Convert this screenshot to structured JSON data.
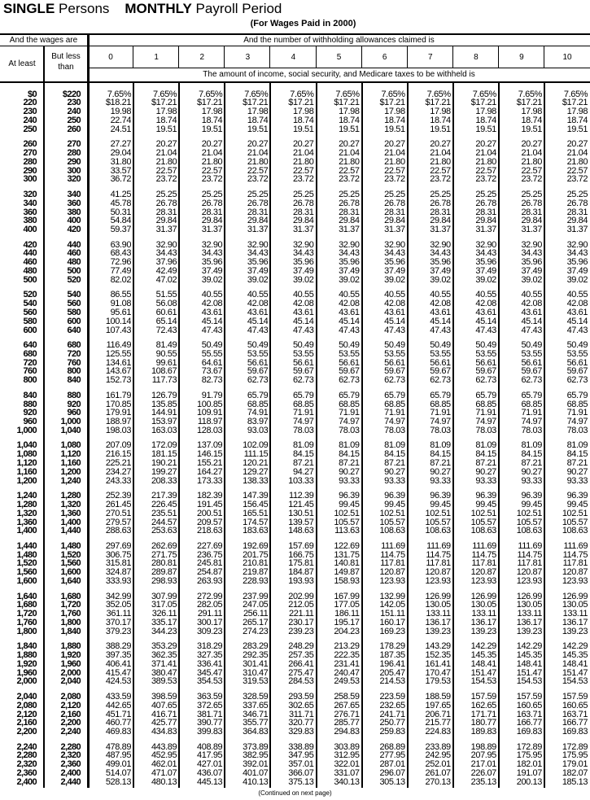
{
  "title": {
    "bold1": "SINGLE",
    "text1": "Persons",
    "bold2": "MONTHLY",
    "text2": "Payroll Period"
  },
  "subtitle": "(For Wages Paid in 2000)",
  "header": {
    "wages_label": "And the wages are",
    "allowances_label": "And the number of withholding allowances claimed is",
    "at_least": "At least",
    "but_less_than": "But less than",
    "allowance_columns": [
      "0",
      "1",
      "2",
      "3",
      "4",
      "5",
      "6",
      "7",
      "8",
      "9",
      "10"
    ],
    "amount_label": "The amount of income, social security, and Medicare taxes to be withheld is"
  },
  "groups": [
    [
      [
        "$0",
        "$220",
        "7.65%",
        "7.65%",
        "7.65%",
        "7.65%",
        "7.65%",
        "7.65%",
        "7.65%",
        "7.65%",
        "7.65%",
        "7.65%",
        "7.65%"
      ],
      [
        "220",
        "230",
        "$18.21",
        "$17.21",
        "$17.21",
        "$17.21",
        "$17.21",
        "$17.21",
        "$17.21",
        "$17.21",
        "$17.21",
        "$17.21",
        "$17.21"
      ],
      [
        "230",
        "240",
        "19.98",
        "17.98",
        "17.98",
        "17.98",
        "17.98",
        "17.98",
        "17.98",
        "17.98",
        "17.98",
        "17.98",
        "17.98"
      ],
      [
        "240",
        "250",
        "22.74",
        "18.74",
        "18.74",
        "18.74",
        "18.74",
        "18.74",
        "18.74",
        "18.74",
        "18.74",
        "18.74",
        "18.74"
      ],
      [
        "250",
        "260",
        "24.51",
        "19.51",
        "19.51",
        "19.51",
        "19.51",
        "19.51",
        "19.51",
        "19.51",
        "19.51",
        "19.51",
        "19.51"
      ]
    ],
    [
      [
        "260",
        "270",
        "27.27",
        "20.27",
        "20.27",
        "20.27",
        "20.27",
        "20.27",
        "20.27",
        "20.27",
        "20.27",
        "20.27",
        "20.27"
      ],
      [
        "270",
        "280",
        "29.04",
        "21.04",
        "21.04",
        "21.04",
        "21.04",
        "21.04",
        "21.04",
        "21.04",
        "21.04",
        "21.04",
        "21.04"
      ],
      [
        "280",
        "290",
        "31.80",
        "21.80",
        "21.80",
        "21.80",
        "21.80",
        "21.80",
        "21.80",
        "21.80",
        "21.80",
        "21.80",
        "21.80"
      ],
      [
        "290",
        "300",
        "33.57",
        "22.57",
        "22.57",
        "22.57",
        "22.57",
        "22.57",
        "22.57",
        "22.57",
        "22.57",
        "22.57",
        "22.57"
      ],
      [
        "300",
        "320",
        "36.72",
        "23.72",
        "23.72",
        "23.72",
        "23.72",
        "23.72",
        "23.72",
        "23.72",
        "23.72",
        "23.72",
        "23.72"
      ]
    ],
    [
      [
        "320",
        "340",
        "41.25",
        "25.25",
        "25.25",
        "25.25",
        "25.25",
        "25.25",
        "25.25",
        "25.25",
        "25.25",
        "25.25",
        "25.25"
      ],
      [
        "340",
        "360",
        "45.78",
        "26.78",
        "26.78",
        "26.78",
        "26.78",
        "26.78",
        "26.78",
        "26.78",
        "26.78",
        "26.78",
        "26.78"
      ],
      [
        "360",
        "380",
        "50.31",
        "28.31",
        "28.31",
        "28.31",
        "28.31",
        "28.31",
        "28.31",
        "28.31",
        "28.31",
        "28.31",
        "28.31"
      ],
      [
        "380",
        "400",
        "54.84",
        "29.84",
        "29.84",
        "29.84",
        "29.84",
        "29.84",
        "29.84",
        "29.84",
        "29.84",
        "29.84",
        "29.84"
      ],
      [
        "400",
        "420",
        "59.37",
        "31.37",
        "31.37",
        "31.37",
        "31.37",
        "31.37",
        "31.37",
        "31.37",
        "31.37",
        "31.37",
        "31.37"
      ]
    ],
    [
      [
        "420",
        "440",
        "63.90",
        "32.90",
        "32.90",
        "32.90",
        "32.90",
        "32.90",
        "32.90",
        "32.90",
        "32.90",
        "32.90",
        "32.90"
      ],
      [
        "440",
        "460",
        "68.43",
        "34.43",
        "34.43",
        "34.43",
        "34.43",
        "34.43",
        "34.43",
        "34.43",
        "34.43",
        "34.43",
        "34.43"
      ],
      [
        "460",
        "480",
        "72.96",
        "37.96",
        "35.96",
        "35.96",
        "35.96",
        "35.96",
        "35.96",
        "35.96",
        "35.96",
        "35.96",
        "35.96"
      ],
      [
        "480",
        "500",
        "77.49",
        "42.49",
        "37.49",
        "37.49",
        "37.49",
        "37.49",
        "37.49",
        "37.49",
        "37.49",
        "37.49",
        "37.49"
      ],
      [
        "500",
        "520",
        "82.02",
        "47.02",
        "39.02",
        "39.02",
        "39.02",
        "39.02",
        "39.02",
        "39.02",
        "39.02",
        "39.02",
        "39.02"
      ]
    ],
    [
      [
        "520",
        "540",
        "86.55",
        "51.55",
        "40.55",
        "40.55",
        "40.55",
        "40.55",
        "40.55",
        "40.55",
        "40.55",
        "40.55",
        "40.55"
      ],
      [
        "540",
        "560",
        "91.08",
        "56.08",
        "42.08",
        "42.08",
        "42.08",
        "42.08",
        "42.08",
        "42.08",
        "42.08",
        "42.08",
        "42.08"
      ],
      [
        "560",
        "580",
        "95.61",
        "60.61",
        "43.61",
        "43.61",
        "43.61",
        "43.61",
        "43.61",
        "43.61",
        "43.61",
        "43.61",
        "43.61"
      ],
      [
        "580",
        "600",
        "100.14",
        "65.14",
        "45.14",
        "45.14",
        "45.14",
        "45.14",
        "45.14",
        "45.14",
        "45.14",
        "45.14",
        "45.14"
      ],
      [
        "600",
        "640",
        "107.43",
        "72.43",
        "47.43",
        "47.43",
        "47.43",
        "47.43",
        "47.43",
        "47.43",
        "47.43",
        "47.43",
        "47.43"
      ]
    ],
    [
      [
        "640",
        "680",
        "116.49",
        "81.49",
        "50.49",
        "50.49",
        "50.49",
        "50.49",
        "50.49",
        "50.49",
        "50.49",
        "50.49",
        "50.49"
      ],
      [
        "680",
        "720",
        "125.55",
        "90.55",
        "55.55",
        "53.55",
        "53.55",
        "53.55",
        "53.55",
        "53.55",
        "53.55",
        "53.55",
        "53.55"
      ],
      [
        "720",
        "760",
        "134.61",
        "99.61",
        "64.61",
        "56.61",
        "56.61",
        "56.61",
        "56.61",
        "56.61",
        "56.61",
        "56.61",
        "56.61"
      ],
      [
        "760",
        "800",
        "143.67",
        "108.67",
        "73.67",
        "59.67",
        "59.67",
        "59.67",
        "59.67",
        "59.67",
        "59.67",
        "59.67",
        "59.67"
      ],
      [
        "800",
        "840",
        "152.73",
        "117.73",
        "82.73",
        "62.73",
        "62.73",
        "62.73",
        "62.73",
        "62.73",
        "62.73",
        "62.73",
        "62.73"
      ]
    ],
    [
      [
        "840",
        "880",
        "161.79",
        "126.79",
        "91.79",
        "65.79",
        "65.79",
        "65.79",
        "65.79",
        "65.79",
        "65.79",
        "65.79",
        "65.79"
      ],
      [
        "880",
        "920",
        "170.85",
        "135.85",
        "100.85",
        "68.85",
        "68.85",
        "68.85",
        "68.85",
        "68.85",
        "68.85",
        "68.85",
        "68.85"
      ],
      [
        "920",
        "960",
        "179.91",
        "144.91",
        "109.91",
        "74.91",
        "71.91",
        "71.91",
        "71.91",
        "71.91",
        "71.91",
        "71.91",
        "71.91"
      ],
      [
        "960",
        "1,000",
        "188.97",
        "153.97",
        "118.97",
        "83.97",
        "74.97",
        "74.97",
        "74.97",
        "74.97",
        "74.97",
        "74.97",
        "74.97"
      ],
      [
        "1,000",
        "1,040",
        "198.03",
        "163.03",
        "128.03",
        "93.03",
        "78.03",
        "78.03",
        "78.03",
        "78.03",
        "78.03",
        "78.03",
        "78.03"
      ]
    ],
    [
      [
        "1,040",
        "1,080",
        "207.09",
        "172.09",
        "137.09",
        "102.09",
        "81.09",
        "81.09",
        "81.09",
        "81.09",
        "81.09",
        "81.09",
        "81.09"
      ],
      [
        "1,080",
        "1,120",
        "216.15",
        "181.15",
        "146.15",
        "111.15",
        "84.15",
        "84.15",
        "84.15",
        "84.15",
        "84.15",
        "84.15",
        "84.15"
      ],
      [
        "1,120",
        "1,160",
        "225.21",
        "190.21",
        "155.21",
        "120.21",
        "87.21",
        "87.21",
        "87.21",
        "87.21",
        "87.21",
        "87.21",
        "87.21"
      ],
      [
        "1,160",
        "1,200",
        "234.27",
        "199.27",
        "164.27",
        "129.27",
        "94.27",
        "90.27",
        "90.27",
        "90.27",
        "90.27",
        "90.27",
        "90.27"
      ],
      [
        "1,200",
        "1,240",
        "243.33",
        "208.33",
        "173.33",
        "138.33",
        "103.33",
        "93.33",
        "93.33",
        "93.33",
        "93.33",
        "93.33",
        "93.33"
      ]
    ],
    [
      [
        "1,240",
        "1,280",
        "252.39",
        "217.39",
        "182.39",
        "147.39",
        "112.39",
        "96.39",
        "96.39",
        "96.39",
        "96.39",
        "96.39",
        "96.39"
      ],
      [
        "1,280",
        "1,320",
        "261.45",
        "226.45",
        "191.45",
        "156.45",
        "121.45",
        "99.45",
        "99.45",
        "99.45",
        "99.45",
        "99.45",
        "99.45"
      ],
      [
        "1,320",
        "1,360",
        "270.51",
        "235.51",
        "200.51",
        "165.51",
        "130.51",
        "102.51",
        "102.51",
        "102.51",
        "102.51",
        "102.51",
        "102.51"
      ],
      [
        "1,360",
        "1,400",
        "279.57",
        "244.57",
        "209.57",
        "174.57",
        "139.57",
        "105.57",
        "105.57",
        "105.57",
        "105.57",
        "105.57",
        "105.57"
      ],
      [
        "1,400",
        "1,440",
        "288.63",
        "253.63",
        "218.63",
        "183.63",
        "148.63",
        "113.63",
        "108.63",
        "108.63",
        "108.63",
        "108.63",
        "108.63"
      ]
    ],
    [
      [
        "1,440",
        "1,480",
        "297.69",
        "262.69",
        "227.69",
        "192.69",
        "157.69",
        "122.69",
        "111.69",
        "111.69",
        "111.69",
        "111.69",
        "111.69"
      ],
      [
        "1,480",
        "1,520",
        "306.75",
        "271.75",
        "236.75",
        "201.75",
        "166.75",
        "131.75",
        "114.75",
        "114.75",
        "114.75",
        "114.75",
        "114.75"
      ],
      [
        "1,520",
        "1,560",
        "315.81",
        "280.81",
        "245.81",
        "210.81",
        "175.81",
        "140.81",
        "117.81",
        "117.81",
        "117.81",
        "117.81",
        "117.81"
      ],
      [
        "1,560",
        "1,600",
        "324.87",
        "289.87",
        "254.87",
        "219.87",
        "184.87",
        "149.87",
        "120.87",
        "120.87",
        "120.87",
        "120.87",
        "120.87"
      ],
      [
        "1,600",
        "1,640",
        "333.93",
        "298.93",
        "263.93",
        "228.93",
        "193.93",
        "158.93",
        "123.93",
        "123.93",
        "123.93",
        "123.93",
        "123.93"
      ]
    ],
    [
      [
        "1,640",
        "1,680",
        "342.99",
        "307.99",
        "272.99",
        "237.99",
        "202.99",
        "167.99",
        "132.99",
        "126.99",
        "126.99",
        "126.99",
        "126.99"
      ],
      [
        "1,680",
        "1,720",
        "352.05",
        "317.05",
        "282.05",
        "247.05",
        "212.05",
        "177.05",
        "142.05",
        "130.05",
        "130.05",
        "130.05",
        "130.05"
      ],
      [
        "1,720",
        "1,760",
        "361.11",
        "326.11",
        "291.11",
        "256.11",
        "221.11",
        "186.11",
        "151.11",
        "133.11",
        "133.11",
        "133.11",
        "133.11"
      ],
      [
        "1,760",
        "1,800",
        "370.17",
        "335.17",
        "300.17",
        "265.17",
        "230.17",
        "195.17",
        "160.17",
        "136.17",
        "136.17",
        "136.17",
        "136.17"
      ],
      [
        "1,800",
        "1,840",
        "379.23",
        "344.23",
        "309.23",
        "274.23",
        "239.23",
        "204.23",
        "169.23",
        "139.23",
        "139.23",
        "139.23",
        "139.23"
      ]
    ],
    [
      [
        "1,840",
        "1,880",
        "388.29",
        "353.29",
        "318.29",
        "283.29",
        "248.29",
        "213.29",
        "178.29",
        "143.29",
        "142.29",
        "142.29",
        "142.29"
      ],
      [
        "1,880",
        "1,920",
        "397.35",
        "362.35",
        "327.35",
        "292.35",
        "257.35",
        "222.35",
        "187.35",
        "152.35",
        "145.35",
        "145.35",
        "145.35"
      ],
      [
        "1,920",
        "1,960",
        "406.41",
        "371.41",
        "336.41",
        "301.41",
        "266.41",
        "231.41",
        "196.41",
        "161.41",
        "148.41",
        "148.41",
        "148.41"
      ],
      [
        "1,960",
        "2,000",
        "415.47",
        "380.47",
        "345.47",
        "310.47",
        "275.47",
        "240.47",
        "205.47",
        "170.47",
        "151.47",
        "151.47",
        "151.47"
      ],
      [
        "2,000",
        "2,040",
        "424.53",
        "389.53",
        "354.53",
        "319.53",
        "284.53",
        "249.53",
        "214.53",
        "179.53",
        "154.53",
        "154.53",
        "154.53"
      ]
    ],
    [
      [
        "2,040",
        "2,080",
        "433.59",
        "398.59",
        "363.59",
        "328.59",
        "293.59",
        "258.59",
        "223.59",
        "188.59",
        "157.59",
        "157.59",
        "157.59"
      ],
      [
        "2,080",
        "2,120",
        "442.65",
        "407.65",
        "372.65",
        "337.65",
        "302.65",
        "267.65",
        "232.65",
        "197.65",
        "162.65",
        "160.65",
        "160.65"
      ],
      [
        "2,120",
        "2,160",
        "451.71",
        "416.71",
        "381.71",
        "346.71",
        "311.71",
        "276.71",
        "241.71",
        "206.71",
        "171.71",
        "163.71",
        "163.71"
      ],
      [
        "2,160",
        "2,200",
        "460.77",
        "425.77",
        "390.77",
        "355.77",
        "320.77",
        "285.77",
        "250.77",
        "215.77",
        "180.77",
        "166.77",
        "166.77"
      ],
      [
        "2,200",
        "2,240",
        "469.83",
        "434.83",
        "399.83",
        "364.83",
        "329.83",
        "294.83",
        "259.83",
        "224.83",
        "189.83",
        "169.83",
        "169.83"
      ]
    ],
    [
      [
        "2,240",
        "2,280",
        "478.89",
        "443.89",
        "408.89",
        "373.89",
        "338.89",
        "303.89",
        "268.89",
        "233.89",
        "198.89",
        "172.89",
        "172.89"
      ],
      [
        "2,280",
        "2,320",
        "487.95",
        "452.95",
        "417.95",
        "382.95",
        "347.95",
        "312.95",
        "277.95",
        "242.95",
        "207.95",
        "175.95",
        "175.95"
      ],
      [
        "2,320",
        "2,360",
        "499.01",
        "462.01",
        "427.01",
        "392.01",
        "357.01",
        "322.01",
        "287.01",
        "252.01",
        "217.01",
        "182.01",
        "179.01"
      ],
      [
        "2,360",
        "2,400",
        "514.07",
        "471.07",
        "436.07",
        "401.07",
        "366.07",
        "331.07",
        "296.07",
        "261.07",
        "226.07",
        "191.07",
        "182.07"
      ],
      [
        "2,400",
        "2,440",
        "528.13",
        "480.13",
        "445.13",
        "410.13",
        "375.13",
        "340.13",
        "305.13",
        "270.13",
        "235.13",
        "200.13",
        "185.13"
      ]
    ]
  ],
  "footer": "(Continued on next page)"
}
